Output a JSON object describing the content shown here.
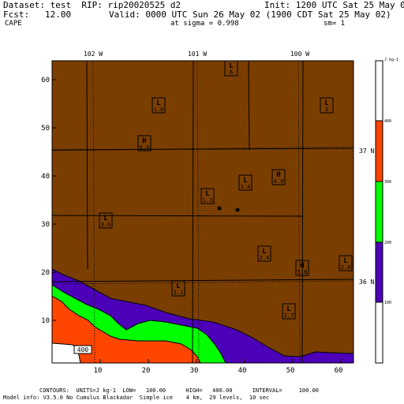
{
  "header": {
    "dataset": "Dataset: test  RIP: rip20020525 d2",
    "init": "Init: 1200 UTC Sat 25 May 02",
    "fcst": "Fcst:   12.00",
    "valid": "Valid: 0000 UTC Sun 26 May 02 (1900 CDT Sat 25 May 02)",
    "field": "CAPE",
    "sigma": "at sigma = 0.998",
    "sm": "sm= 1"
  },
  "map": {
    "longitude_labels": [
      "102 W",
      "101 W",
      "100 W"
    ],
    "latitude_labels": [
      "37 N",
      "36 N"
    ],
    "y_ticks": [
      "10",
      "20",
      "30",
      "40",
      "50",
      "60"
    ],
    "x_ticks": [
      "10",
      "20",
      "30",
      "40",
      "50",
      "60"
    ],
    "contour_label": "400",
    "colors": {
      "brown": "#7a3e00",
      "purple": "#4c00b8",
      "green": "#00ff00",
      "orange": "#ff4500",
      "white": "#ffffff"
    },
    "markers": [
      {
        "kind": "L",
        "value": "6"
      },
      {
        "kind": "L",
        "value": "1.6"
      },
      {
        "kind": "L",
        "value": "2"
      },
      {
        "kind": "H",
        "value": "6.4"
      },
      {
        "kind": "H",
        "value": "4.9"
      },
      {
        "kind": "L",
        "value": "1.4"
      },
      {
        "kind": "L",
        "value": "1.3"
      },
      {
        "kind": "L",
        "value": "3.6"
      },
      {
        "kind": "L",
        "value": "2.4"
      },
      {
        "kind": "H",
        "value": "5.8"
      },
      {
        "kind": "L",
        "value": "2.0"
      },
      {
        "kind": "L",
        "value": "2.1"
      },
      {
        "kind": "L",
        "value": "2.7"
      }
    ]
  },
  "colorbar": {
    "unit": "J kg-1",
    "labels": [
      "400",
      "300",
      "200",
      "100"
    ]
  },
  "footer": {
    "line1": "CONTOURS:  UNITS=J kg-1  LOW=   100.00      HIGH=   400.00      INTERVAL=     100.00",
    "line2": "Model info: V3.5.0 No Cumulus Blackadar  Simple ice    4 km,  29 levels,  10 sec"
  }
}
